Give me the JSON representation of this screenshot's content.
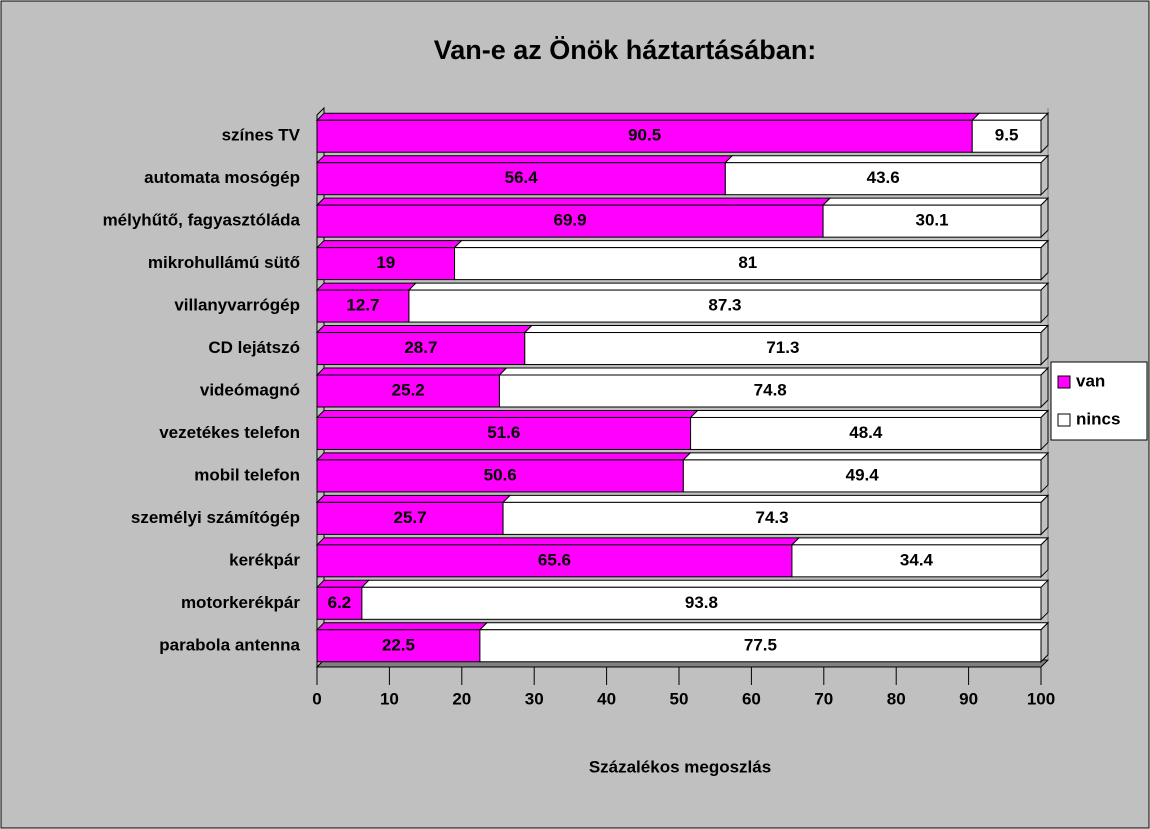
{
  "chart_data": {
    "type": "stacked_bar_horizontal",
    "title": "Van-e az Önök háztartásában:",
    "x_label": "Százalékos megoszlás",
    "categories": [
      "színes TV",
      "automata mosógép",
      "mélyhűtő, fagyasztóláda",
      "mikrohullámú sütő",
      "villanyvarrógép",
      "CD lejátszó",
      "videómagnó",
      "vezetékes telefon",
      "mobil telefon",
      "személyi számítógép",
      "kerékpár",
      "motorkerékpár",
      "parabola antenna"
    ],
    "series": [
      {
        "name": "van",
        "color": "#ff00ff",
        "values": [
          90.5,
          56.4,
          69.9,
          19,
          12.7,
          28.7,
          25.2,
          51.6,
          50.6,
          25.7,
          65.6,
          6.2,
          22.5
        ]
      },
      {
        "name": "nincs",
        "color": "#ffffff",
        "values": [
          9.5,
          43.6,
          30.1,
          81,
          87.3,
          71.3,
          74.8,
          48.4,
          49.4,
          74.3,
          34.4,
          93.8,
          77.5
        ]
      }
    ],
    "xlim": [
      0,
      100
    ],
    "xticks": [
      0,
      10,
      20,
      30,
      40,
      50,
      60,
      70,
      80,
      90,
      100
    ],
    "legend": "right"
  }
}
